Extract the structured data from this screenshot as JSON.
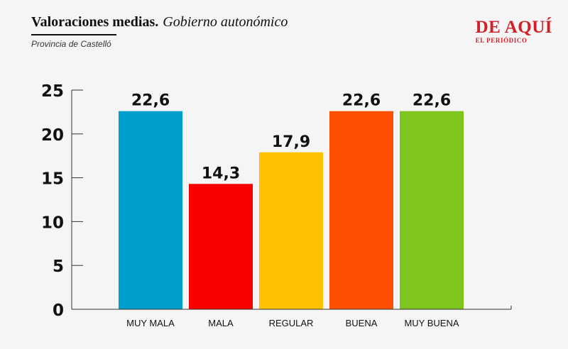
{
  "header": {
    "title_bold": "Valoraciones medias.",
    "title_italic": "Gobierno autonómico",
    "subtitle": "Provincia de Castelló"
  },
  "brand": {
    "name": "DE AQUÍ",
    "sub": "EL PERIÓDICO"
  },
  "chart_data": {
    "type": "bar",
    "categories": [
      "MUY MALA",
      "MALA",
      "REGULAR",
      "BUENA",
      "MUY BUENA"
    ],
    "values": [
      22.6,
      14.3,
      17.9,
      22.6,
      22.6
    ],
    "value_labels": [
      "22,6",
      "14,3",
      "17,9",
      "22,6",
      "22,6"
    ],
    "colors": [
      "#009fcb",
      "#fc0000",
      "#ffc201",
      "#ff5001",
      "#7ec51e"
    ],
    "title": "Valoraciones medias. Gobierno autonómico",
    "subtitle": "Provincia de Castelló",
    "xlabel": "",
    "ylabel": "",
    "ylim": [
      0,
      25
    ],
    "yticks": [
      0,
      5,
      10,
      15,
      20,
      25
    ],
    "grid": false,
    "legend": "none"
  }
}
